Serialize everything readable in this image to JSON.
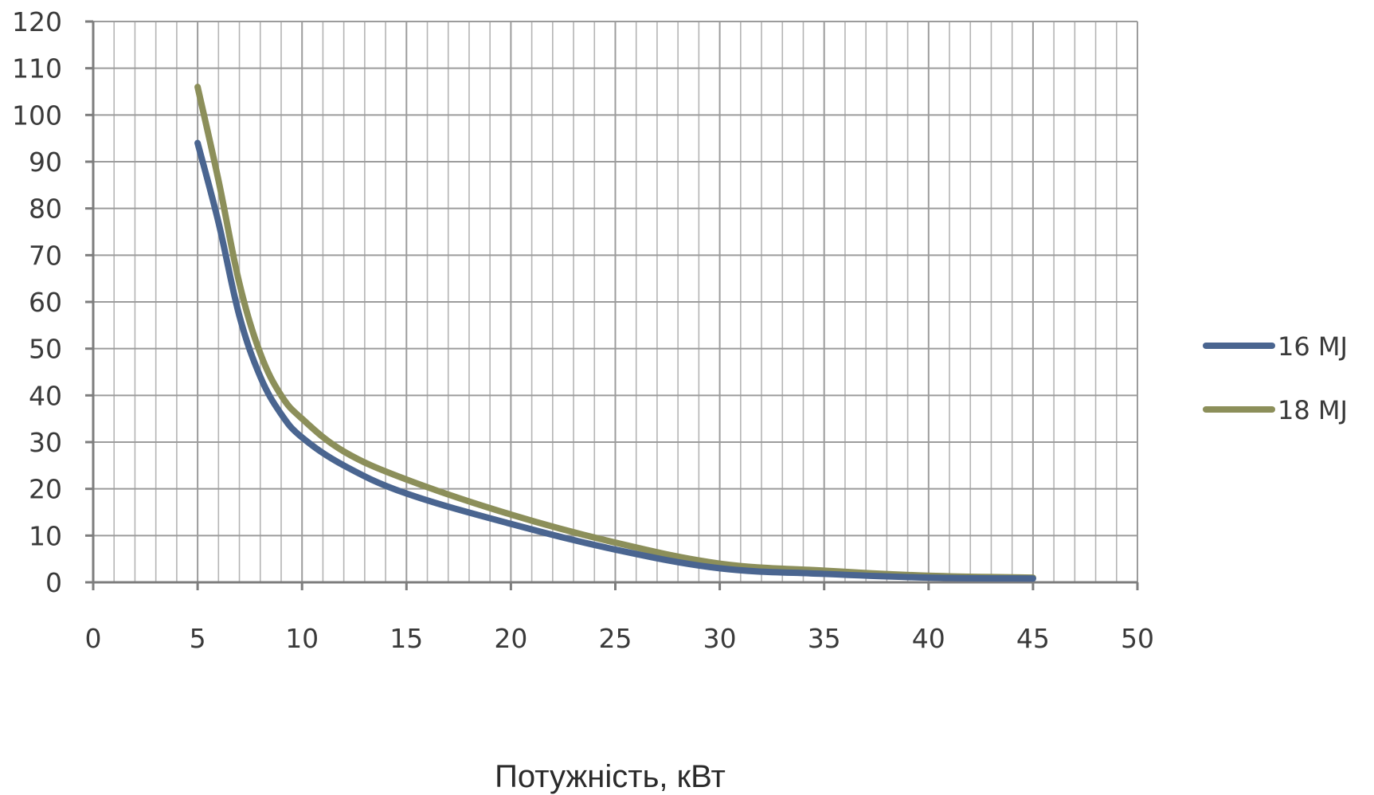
{
  "chart_data": {
    "type": "line",
    "title": "",
    "xlabel": "Потужність, кВт",
    "ylabel": "",
    "xlim": [
      0,
      50
    ],
    "ylim": [
      0,
      120
    ],
    "x_ticks": [
      0,
      5,
      10,
      15,
      20,
      25,
      30,
      35,
      40,
      45,
      50
    ],
    "y_ticks": [
      0,
      10,
      20,
      30,
      40,
      50,
      60,
      70,
      80,
      90,
      100,
      110,
      120
    ],
    "x_tick_labels": [
      "0",
      "5",
      "10",
      "15",
      "20",
      "25",
      "30",
      "35",
      "40",
      "45",
      "50"
    ],
    "y_tick_labels": [
      "0",
      "10",
      "20",
      "30",
      "40",
      "50",
      "60",
      "70",
      "80",
      "90",
      "100",
      "110",
      "120"
    ],
    "grid": true,
    "legend_position": "right",
    "series": [
      {
        "name": "16 MJ",
        "color": "#4a6590",
        "x": [
          5,
          6,
          7,
          8,
          9,
          10,
          12,
          15,
          20,
          25,
          30,
          35,
          40,
          45
        ],
        "values": [
          94,
          77,
          57,
          44,
          36,
          31,
          25,
          19,
          12.5,
          7,
          3,
          1.8,
          1,
          0.8
        ]
      },
      {
        "name": "18 MJ",
        "color": "#8c8f5a",
        "x": [
          5,
          6,
          7,
          8,
          9,
          10,
          12,
          15,
          20,
          25,
          30,
          35,
          40,
          45
        ],
        "values": [
          106,
          86,
          64,
          49,
          40,
          35,
          28,
          22,
          14.5,
          8.5,
          4,
          2.5,
          1.4,
          1
        ]
      }
    ]
  }
}
